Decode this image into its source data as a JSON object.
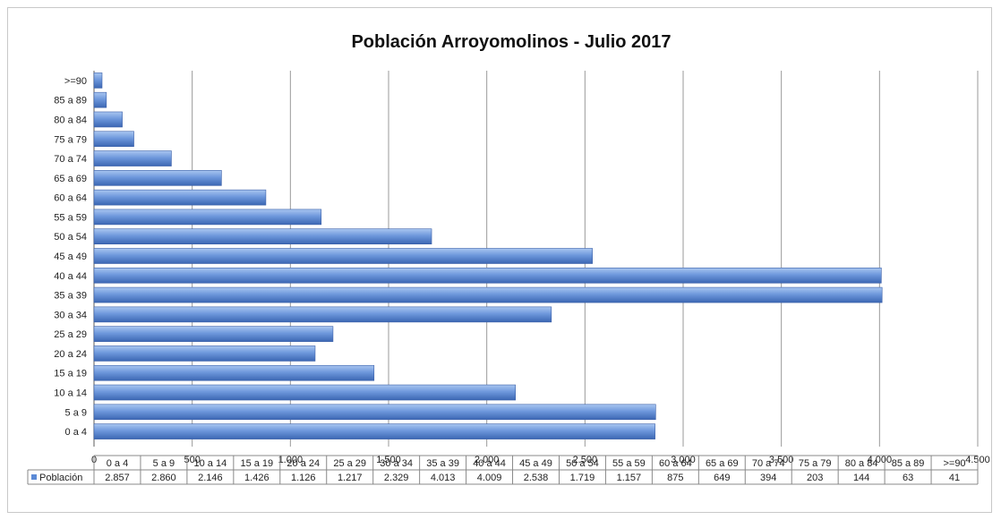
{
  "chart_data": {
    "type": "bar",
    "orientation": "horizontal",
    "title": "Población Arroyomolinos - Julio 2017",
    "categories": [
      "0 a 4",
      "5 a 9",
      "10 a 14",
      "15 a 19",
      "20 a 24",
      "25 a 29",
      "30 a 34",
      "35 a 39",
      "40 a 44",
      "45 a 49",
      "50 a 54",
      "55 a 59",
      "60 a 64",
      "65 a 69",
      "70 a 74",
      "75 a 79",
      "80 a 84",
      "85 a 89",
      ">=90"
    ],
    "series": [
      {
        "name": "Población",
        "values": [
          2857,
          2860,
          2146,
          1426,
          1126,
          1217,
          2329,
          4013,
          4009,
          2538,
          1719,
          1157,
          875,
          649,
          394,
          203,
          144,
          63,
          41
        ]
      }
    ],
    "table_values": [
      "2.857",
      "2.860",
      "2.146",
      "1.426",
      "1.126",
      "1.217",
      "2.329",
      "4.013",
      "4.009",
      "2.538",
      "1.719",
      "1.157",
      "875",
      "649",
      "394",
      "203",
      "144",
      "63",
      "41"
    ],
    "xlim": [
      0,
      4500
    ],
    "xticks": [
      0,
      500,
      1000,
      1500,
      2000,
      2500,
      3000,
      3500,
      4000,
      4500
    ],
    "xtick_labels": [
      "0",
      "500",
      "1.000",
      "1.500",
      "2.000",
      "2.500",
      "3.000",
      "3.500",
      "4.000",
      "4.500"
    ],
    "grid": true,
    "legend": "data-table-left",
    "colors": {
      "bar": "#5b8ad6",
      "bar_light": "#9dbcec",
      "bar_dark": "#3f6cb8",
      "grid": "#9a9a9a"
    }
  }
}
